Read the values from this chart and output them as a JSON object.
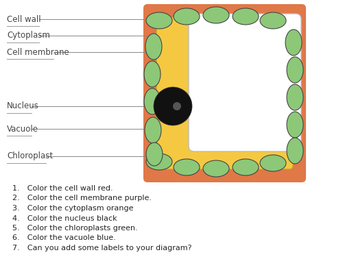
{
  "bg_color": "#ffffff",
  "cell_wall_color": "#e07848",
  "cytoplasm_color": "#f5c842",
  "vacuole_color": "#ffffff",
  "chloroplast_color": "#8cc878",
  "chloroplast_edge": "#444444",
  "nucleus_color": "#111111",
  "label_color": "#444444",
  "line_color": "#888888",
  "instructions": [
    "Color the cell wall red.",
    "Color the cell membrane purple.",
    "Color the cytoplasm orange",
    "Color the nucleus black",
    "Color the chloroplasts green.",
    "Color the vacuole blue.",
    "Can you add some labels to your diagram?"
  ],
  "fig_w": 5.0,
  "fig_h": 3.75,
  "dpi": 100
}
